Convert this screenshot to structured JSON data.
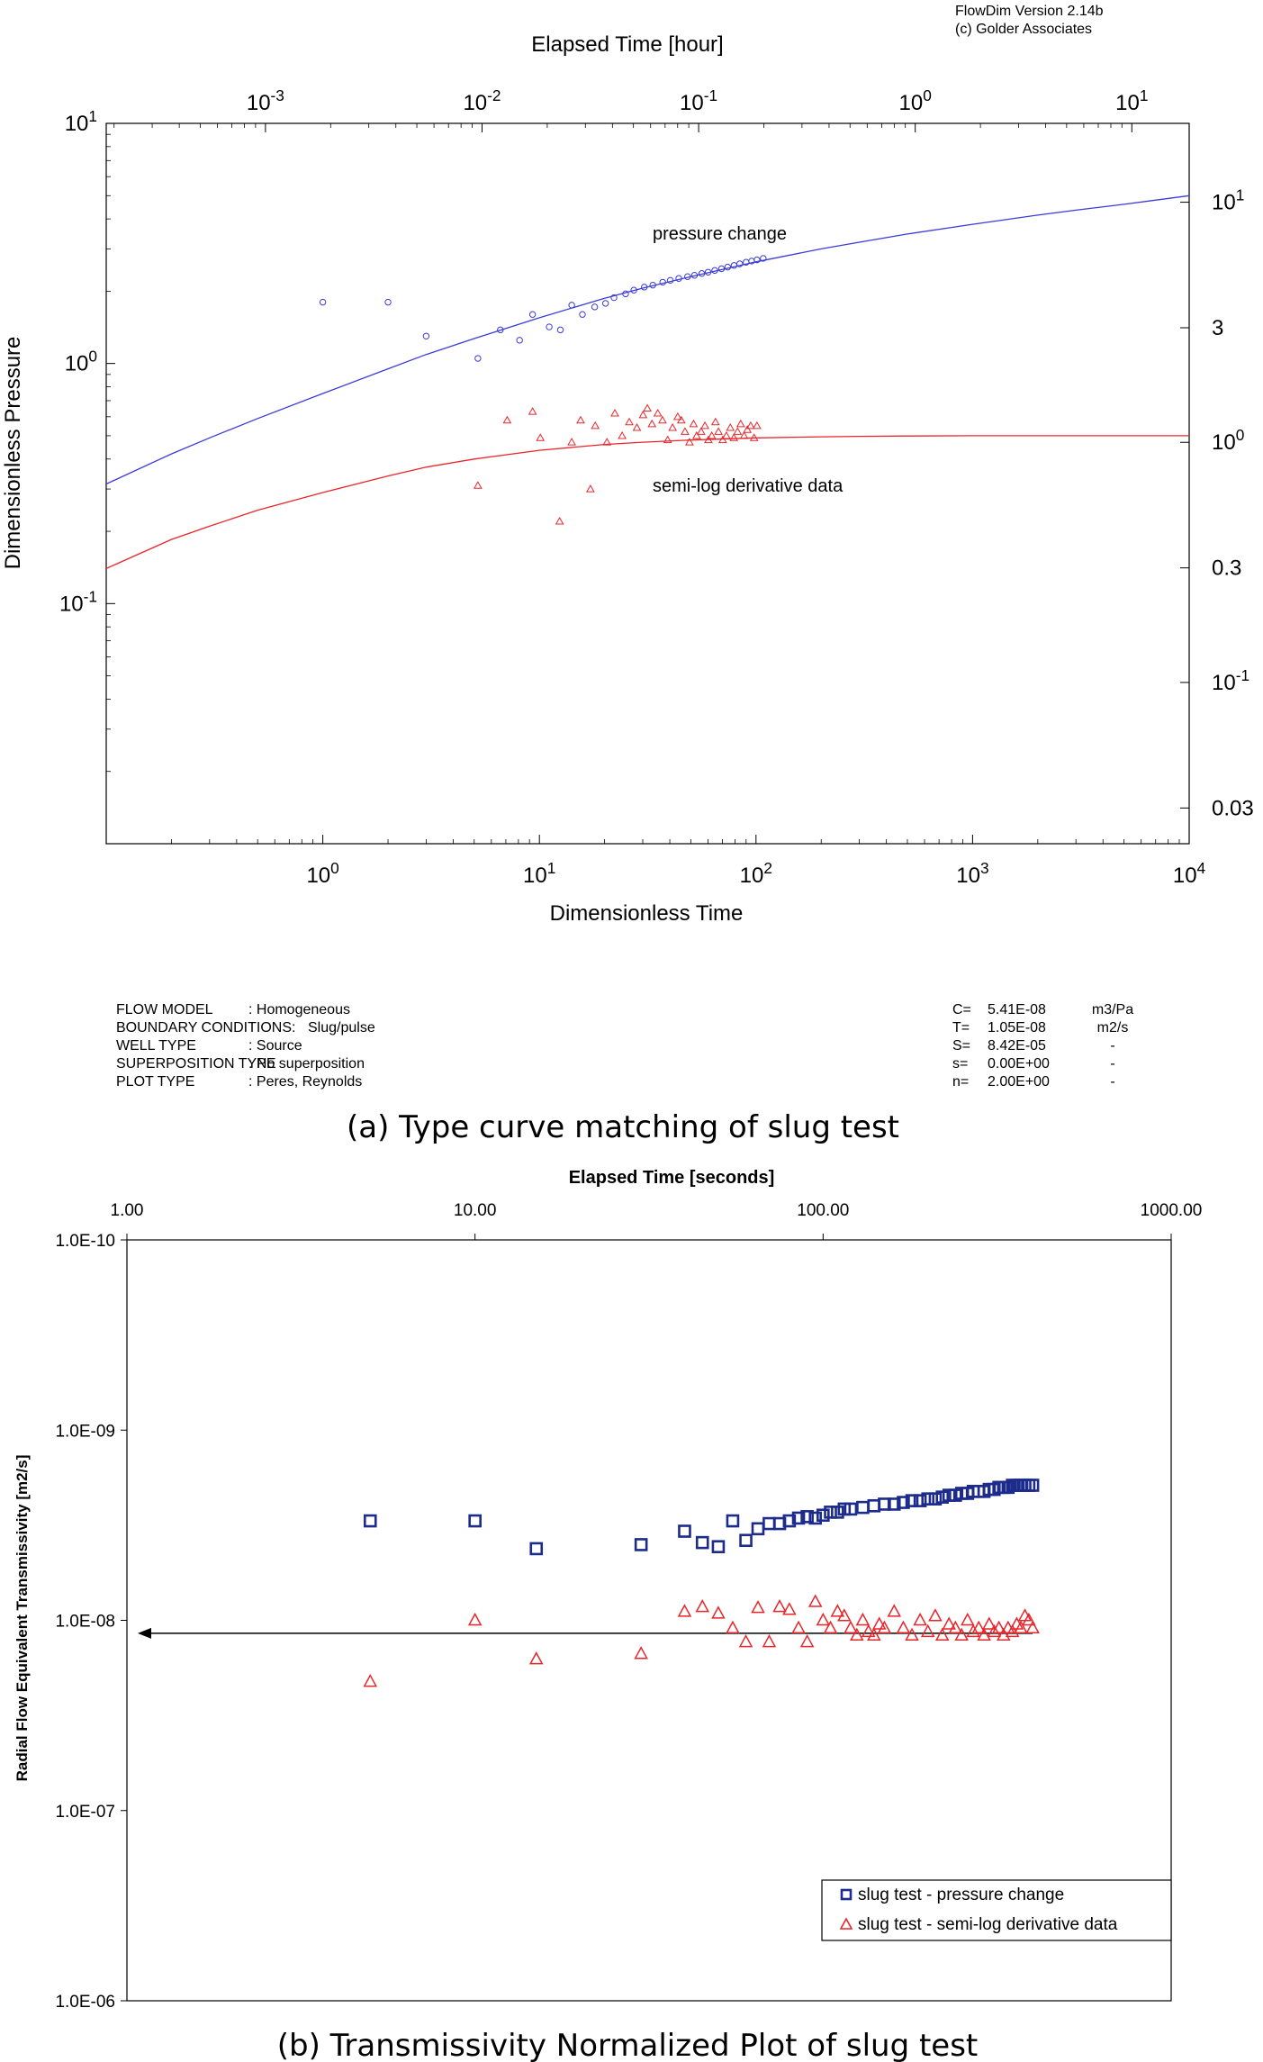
{
  "chart_data": [
    {
      "type": "scatter",
      "title": "(a) Type curve matching of slug test",
      "header": {
        "line1": "FlowDim Version 2.14b",
        "line2": "(c) Golder Associates"
      },
      "xlabel": "Dimensionless Time",
      "ylabel": "Dimensionless Pressure",
      "top_xlabel": "Elapsed Time [hour]",
      "xlim": [
        0.1,
        10000
      ],
      "ylim": [
        0.01,
        10
      ],
      "x_ticks": [
        {
          "value": 1,
          "base": "10",
          "exp": "0"
        },
        {
          "value": 10,
          "base": "10",
          "exp": "1"
        },
        {
          "value": 100,
          "base": "10",
          "exp": "2"
        },
        {
          "value": 1000,
          "base": "10",
          "exp": "3"
        },
        {
          "value": 10000,
          "base": "10",
          "exp": "4"
        }
      ],
      "y_ticks": [
        {
          "value": 10,
          "base": "10",
          "exp": "1"
        },
        {
          "value": 1,
          "base": "10",
          "exp": "0"
        },
        {
          "value": 0.1,
          "base": "10",
          "exp": "-1"
        }
      ],
      "top_ticks": [
        {
          "value": 0.001,
          "base": "10",
          "exp": "-3"
        },
        {
          "value": 0.01,
          "base": "10",
          "exp": "-2"
        },
        {
          "value": 0.1,
          "base": "10",
          "exp": "-1"
        },
        {
          "value": 1,
          "base": "10",
          "exp": "0"
        },
        {
          "value": 10,
          "base": "10",
          "exp": "1"
        }
      ],
      "top_range": [
        0.000184,
        18.4
      ],
      "right_ticks": [
        {
          "value": 10,
          "label": "10",
          "sup": "1"
        },
        {
          "value": 3,
          "label": "3",
          "sup": ""
        },
        {
          "value": 1,
          "label": "10",
          "sup": "0"
        },
        {
          "value": 0.3,
          "label": "0.3",
          "sup": ""
        },
        {
          "value": 0.1,
          "label": "10",
          "sup": "-1"
        },
        {
          "value": 0.03,
          "label": "0.03",
          "sup": ""
        }
      ],
      "right_range": [
        0.0213,
        21.3
      ],
      "annotations": {
        "pressure": "pressure change",
        "derivative": "semi-log derivative data"
      },
      "colors": {
        "pressure": "#3b3bd8",
        "derivative": "#e8262a"
      },
      "series": [
        {
          "name": "pressure change (model)",
          "kind": "line",
          "x": [
            0.1,
            0.2,
            0.3,
            0.5,
            1,
            2,
            3,
            5,
            10,
            20,
            30,
            50,
            100,
            200,
            300,
            500,
            1000,
            2000,
            3000,
            5000,
            10000
          ],
          "y": [
            0.315,
            0.42,
            0.49,
            0.59,
            0.75,
            0.95,
            1.09,
            1.27,
            1.55,
            1.87,
            2.06,
            2.3,
            2.65,
            3.0,
            3.2,
            3.46,
            3.8,
            4.15,
            4.35,
            4.6,
            5.0
          ]
        },
        {
          "name": "semi-log derivative (model)",
          "kind": "line",
          "x": [
            0.1,
            0.2,
            0.3,
            0.5,
            1,
            2,
            3,
            5,
            10,
            20,
            30,
            50,
            100,
            200,
            300,
            500,
            1000,
            2000,
            5000,
            10000
          ],
          "y": [
            0.14,
            0.185,
            0.21,
            0.245,
            0.29,
            0.34,
            0.37,
            0.4,
            0.435,
            0.46,
            0.47,
            0.48,
            0.49,
            0.495,
            0.497,
            0.499,
            0.5,
            0.5,
            0.5,
            0.5
          ]
        },
        {
          "name": "pressure change",
          "kind": "points",
          "x": [
            1.0,
            2.0,
            3.0,
            5.2,
            6.6,
            8.1,
            9.3,
            11.1,
            12.5,
            14.1,
            15.8,
            18.0,
            20.2,
            22.1,
            25.0,
            27.3,
            30.5,
            33.4,
            37.1,
            40.2,
            44.0,
            48.3,
            52.0,
            56.2,
            60.1,
            64.5,
            69.3,
            74.0,
            79.2,
            84.1,
            90.0,
            95.5,
            101.0,
            108.0
          ],
          "y": [
            1.8,
            1.8,
            1.3,
            1.05,
            1.38,
            1.25,
            1.6,
            1.42,
            1.38,
            1.75,
            1.6,
            1.72,
            1.78,
            1.88,
            1.95,
            2.02,
            2.08,
            2.12,
            2.18,
            2.22,
            2.26,
            2.3,
            2.33,
            2.37,
            2.4,
            2.44,
            2.48,
            2.52,
            2.56,
            2.6,
            2.64,
            2.67,
            2.7,
            2.74
          ]
        },
        {
          "name": "semi-log derivative data",
          "kind": "points",
          "x": [
            5.2,
            7.1,
            9.3,
            10.1,
            12.4,
            14.1,
            15.5,
            17.2,
            18.1,
            20.5,
            22.3,
            24.1,
            26.0,
            28.2,
            30.1,
            31.5,
            33.1,
            35.2,
            37.0,
            39.1,
            41.2,
            43.5,
            45.2,
            47.0,
            49.3,
            51.5,
            53.2,
            55.8,
            58.1,
            60.3,
            62.5,
            65.0,
            67.1,
            70.2,
            73.0,
            76.1,
            79.0,
            82.2,
            85.0,
            88.1,
            91.2,
            94.5,
            98.0,
            101.0
          ],
          "y": [
            0.31,
            0.58,
            0.63,
            0.49,
            0.22,
            0.47,
            0.58,
            0.3,
            0.55,
            0.47,
            0.62,
            0.5,
            0.57,
            0.54,
            0.61,
            0.65,
            0.56,
            0.62,
            0.58,
            0.48,
            0.54,
            0.6,
            0.58,
            0.52,
            0.47,
            0.56,
            0.5,
            0.52,
            0.55,
            0.48,
            0.5,
            0.57,
            0.52,
            0.48,
            0.5,
            0.54,
            0.49,
            0.52,
            0.56,
            0.5,
            0.53,
            0.55,
            0.49,
            0.55
          ]
        }
      ],
      "info": {
        "left": [
          {
            "label": "FLOW MODEL",
            "value": ": Homogeneous"
          },
          {
            "label": "BOUNDARY CONDITIONS:",
            "value": "Slug/pulse"
          },
          {
            "label": "WELL TYPE",
            "value": ": Source"
          },
          {
            "label": "SUPERPOSITION TYPE",
            "value": ": No superposition"
          },
          {
            "label": "PLOT TYPE",
            "value": ": Peres, Reynolds"
          }
        ],
        "right": [
          {
            "name": "C=",
            "value": "5.41E-08",
            "unit": "m3/Pa"
          },
          {
            "name": "T=",
            "value": "1.05E-08",
            "unit": "m2/s"
          },
          {
            "name": "S=",
            "value": "8.42E-05",
            "unit": "-"
          },
          {
            "name": "s=",
            "value": "0.00E+00",
            "unit": "-"
          },
          {
            "name": "n=",
            "value": "2.00E+00",
            "unit": "-"
          }
        ]
      }
    },
    {
      "type": "scatter",
      "title": "(b) Transmissivity Normalized Plot of slug test",
      "top_xlabel": "Elapsed Time [seconds]",
      "ylabel": "Radial Flow Equivalent Transmissivity [m2/s]",
      "xlim": [
        1,
        1000
      ],
      "ylim": [
        1e-10,
        1e-06
      ],
      "y_inverted": true,
      "x_ticks": [
        {
          "value": 1,
          "label": "1.00"
        },
        {
          "value": 10,
          "label": "10.00"
        },
        {
          "value": 100,
          "label": "100.00"
        },
        {
          "value": 1000,
          "label": "1000.00"
        }
      ],
      "y_ticks": [
        {
          "value": 1e-10,
          "label": "1.0E-10"
        },
        {
          "value": 1e-09,
          "label": "1.0E-09"
        },
        {
          "value": 1e-08,
          "label": "1.0E-08"
        },
        {
          "value": 1e-07,
          "label": "1.0E-07"
        },
        {
          "value": 1e-06,
          "label": "1.0E-06"
        }
      ],
      "arrow_value": 1.17e-08,
      "colors": {
        "pressure": "#1c2b8c",
        "derivative": "#e8262a"
      },
      "legend": {
        "position": "bottom-right",
        "entries": [
          "slug test -  pressure change",
          "slug test - semi-log derivative data"
        ]
      },
      "series": [
        {
          "name": "slug test -  pressure change",
          "marker": "square",
          "x": [
            5,
            10,
            15,
            30,
            40,
            45,
            50,
            55,
            60,
            65,
            70,
            75,
            80,
            85,
            90,
            95,
            100,
            105,
            110,
            115,
            120,
            130,
            140,
            150,
            160,
            170,
            180,
            190,
            200,
            210,
            220,
            230,
            240,
            250,
            260,
            270,
            280,
            290,
            300,
            310,
            320,
            330,
            340,
            350,
            360,
            370,
            380,
            390,
            400
          ],
          "y": [
            3e-09,
            3e-09,
            4.2e-09,
            4e-09,
            3.4e-09,
            3.9e-09,
            4.1e-09,
            3e-09,
            3.8e-09,
            3.3e-09,
            3.1e-09,
            3.1e-09,
            3e-09,
            2.9e-09,
            2.85e-09,
            2.9e-09,
            2.8e-09,
            2.7e-09,
            2.7e-09,
            2.6e-09,
            2.6e-09,
            2.55e-09,
            2.5e-09,
            2.45e-09,
            2.45e-09,
            2.4e-09,
            2.35e-09,
            2.35e-09,
            2.3e-09,
            2.3e-09,
            2.25e-09,
            2.2e-09,
            2.2e-09,
            2.15e-09,
            2.15e-09,
            2.1e-09,
            2.1e-09,
            2.1e-09,
            2.05e-09,
            2.05e-09,
            2e-09,
            2e-09,
            2e-09,
            1.95e-09,
            1.95e-09,
            1.95e-09,
            1.95e-09,
            1.95e-09,
            1.95e-09
          ]
        },
        {
          "name": "slug test - semi-log derivative data",
          "marker": "triangle",
          "x": [
            5,
            10,
            15,
            30,
            40,
            45,
            50,
            55,
            60,
            65,
            70,
            75,
            80,
            85,
            90,
            95,
            100,
            105,
            110,
            115,
            120,
            125,
            130,
            135,
            140,
            145,
            150,
            160,
            170,
            180,
            190,
            200,
            210,
            220,
            230,
            240,
            250,
            260,
            270,
            280,
            290,
            300,
            310,
            320,
            330,
            340,
            350,
            360,
            370,
            380,
            390,
            400
          ],
          "y": [
            2.1e-08,
            1e-08,
            1.6e-08,
            1.5e-08,
            9e-09,
            8.5e-09,
            9.2e-09,
            1.1e-08,
            1.3e-08,
            8.6e-09,
            1.3e-08,
            8.5e-09,
            8.8e-09,
            1.1e-08,
            1.3e-08,
            8e-09,
            1e-08,
            1.1e-08,
            9e-09,
            9.5e-09,
            1.1e-08,
            1.2e-08,
            1e-08,
            1.15e-08,
            1.2e-08,
            1.05e-08,
            1.1e-08,
            9e-09,
            1.1e-08,
            1.2e-08,
            1e-08,
            1.15e-08,
            9.5e-09,
            1.2e-08,
            1.05e-08,
            1.1e-08,
            1.2e-08,
            1e-08,
            1.15e-08,
            1.1e-08,
            1.2e-08,
            1.05e-08,
            1.15e-08,
            1.1e-08,
            1.2e-08,
            1.1e-08,
            1.15e-08,
            1.05e-08,
            1.1e-08,
            9.5e-09,
            1e-08,
            1.1e-08
          ]
        }
      ]
    }
  ]
}
